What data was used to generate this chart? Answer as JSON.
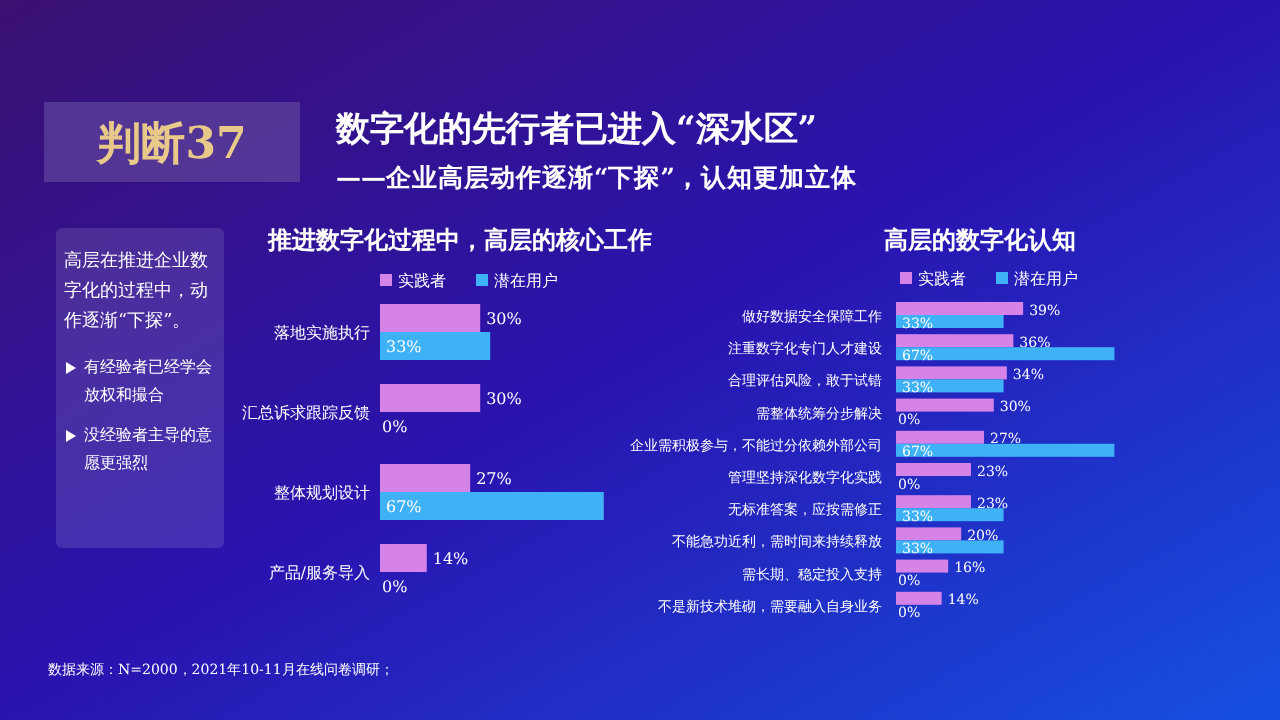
{
  "chart_data": [
    {
      "type": "other",
      "title": "数字化的先行者已进入“深水区”",
      "subtitle": "——企业高层动作逐渐“下探”，认知更加立体",
      "annotations": [
        "判断37",
        "高层在推进企业数字化的过程中，动作逐渐“下探”。",
        "有经验者已经学会放权和撮合",
        "没经验者主导的意愿更强烈",
        "数据来源：N=2000，2021年10-11月在线问卷调研；"
      ]
    },
    {
      "type": "bar",
      "orientation": "horizontal",
      "title": "推进数字化过程中，高层的核心工作",
      "legend": "top",
      "categories": [
        "落地实施执行",
        "汇总诉求跟踪反馈",
        "整体规划设计",
        "产品/服务导入"
      ],
      "series": [
        {
          "name": "实践者",
          "color": "#d683e8",
          "values": [
            30,
            30,
            27,
            14
          ],
          "value_labels": [
            "30%",
            "30%",
            "27%",
            "14%"
          ]
        },
        {
          "name": "潜在用户",
          "color": "#3fb2f7",
          "values": [
            33,
            0,
            67,
            0
          ],
          "value_labels": [
            "33%",
            "0%",
            "67%",
            "0%"
          ]
        }
      ]
    },
    {
      "type": "bar",
      "orientation": "horizontal",
      "title": "高层的数字化认知",
      "legend": "top",
      "categories": [
        "做好数据安全保障工作",
        "注重数字化专门人才建设",
        "合理评估风险，敢于试错",
        "需整体统筹分步解决",
        "企业需积极参与，不能过分依赖外部公司",
        "管理坚持深化数字化实践",
        "无标准答案，应按需修正",
        "不能急功近利，需时间来持续释放",
        "需长期、稳定投入支持",
        "不是新技术堆砌，需要融入自身业务"
      ],
      "series": [
        {
          "name": "实践者",
          "color": "#d683e8",
          "values": [
            39,
            36,
            34,
            30,
            27,
            23,
            23,
            20,
            16,
            14
          ],
          "value_labels": [
            "39%",
            "36%",
            "34%",
            "30%",
            "27%",
            "23%",
            "23%",
            "20%",
            "16%",
            "14%"
          ]
        },
        {
          "name": "潜在用户",
          "color": "#3fb2f7",
          "values": [
            33,
            67,
            33,
            0,
            67,
            0,
            33,
            33,
            0,
            0
          ],
          "value_labels": [
            "33%",
            "67%",
            "33%",
            "0%",
            "67%",
            "0%",
            "33%",
            "33%",
            "0%",
            "0%"
          ]
        }
      ]
    }
  ]
}
